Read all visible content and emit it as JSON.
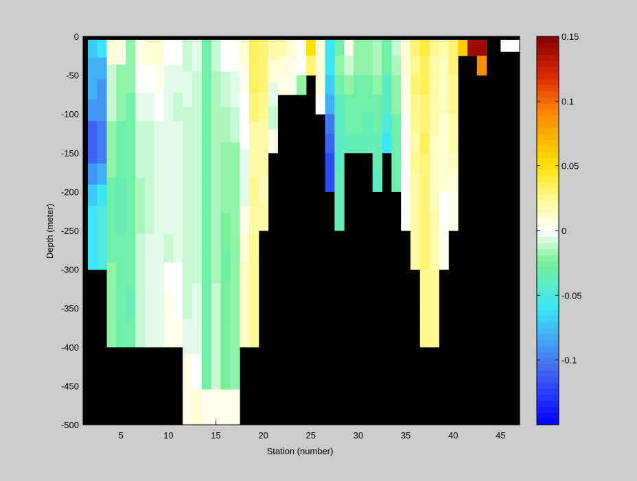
{
  "chart_data": {
    "type": "heatmap",
    "xlabel": "Station (number)",
    "ylabel": "Depth (meter)",
    "xlim": [
      1,
      47
    ],
    "ylim": [
      -500,
      0
    ],
    "x_ticks": [
      5,
      10,
      15,
      20,
      25,
      30,
      35,
      40,
      45
    ],
    "y_ticks": [
      0,
      -50,
      -100,
      -150,
      -200,
      -250,
      -300,
      -350,
      -400,
      -450,
      -500
    ],
    "colorbar": {
      "range": [
        -0.15,
        0.15
      ],
      "ticks": [
        0.15,
        0.1,
        0.05,
        0,
        -0.05,
        -0.1
      ],
      "tick_labels": [
        "0.15",
        "0.1",
        "0.05",
        "0",
        "-0.05",
        "-0.1"
      ],
      "colormap": "jet-with-white-center"
    },
    "land_color": "#000000",
    "columns": [
      {
        "station": 2,
        "bottom": -300,
        "values": [
          -0.07,
          -0.08,
          -0.08,
          -0.09,
          -0.11,
          -0.11,
          -0.09,
          -0.07,
          -0.06,
          -0.06,
          -0.06
        ]
      },
      {
        "station": 3,
        "bottom": -300,
        "values": [
          -0.06,
          -0.08,
          -0.09,
          -0.09,
          -0.1,
          -0.1,
          -0.08,
          -0.06,
          -0.05,
          -0.05,
          -0.05
        ]
      },
      {
        "station": 4,
        "bottom": -400,
        "values": [
          0.01,
          -0.01,
          -0.01,
          -0.02,
          -0.02,
          -0.03,
          -0.03,
          -0.03,
          -0.02,
          -0.02,
          -0.02
        ]
      },
      {
        "station": 5,
        "bottom": -400,
        "values": [
          0.005,
          -0.02,
          -0.02,
          -0.03,
          -0.03,
          -0.035,
          -0.035,
          -0.03,
          -0.03,
          -0.03,
          -0.03
        ]
      },
      {
        "station": 6,
        "bottom": -400,
        "values": [
          -0.02,
          -0.02,
          -0.03,
          -0.03,
          -0.03,
          -0.03,
          -0.03,
          -0.03,
          -0.03,
          -0.035,
          -0.03
        ]
      },
      {
        "station": 7,
        "bottom": -400,
        "values": [
          0.005,
          0.0,
          -0.005,
          -0.01,
          -0.01,
          -0.015,
          -0.015,
          -0.01,
          -0.01,
          -0.01,
          -0.01
        ]
      },
      {
        "station": 8,
        "bottom": -400,
        "values": [
          0.01,
          0.0,
          -0.005,
          -0.01,
          -0.01,
          -0.01,
          -0.01,
          -0.005,
          -0.005,
          -0.005,
          -0.005
        ]
      },
      {
        "station": 9,
        "bottom": -400,
        "values": [
          0.01,
          0.005,
          0.0,
          -0.005,
          -0.005,
          -0.005,
          -0.005,
          -0.005,
          -0.005,
          -0.005,
          -0.005
        ]
      },
      {
        "station": 10,
        "bottom": -400,
        "values": [
          0.0,
          -0.005,
          -0.005,
          -0.005,
          -0.005,
          -0.005,
          -0.005,
          -0.01,
          0.0,
          0.005,
          0.005
        ]
      },
      {
        "station": 11,
        "bottom": -400,
        "values": [
          0.0,
          -0.005,
          -0.01,
          -0.005,
          -0.005,
          -0.005,
          -0.005,
          -0.005,
          0.0,
          0.0,
          0.005
        ]
      },
      {
        "station": 12,
        "bottom": -500,
        "values": [
          -0.01,
          -0.005,
          -0.01,
          -0.01,
          -0.01,
          -0.01,
          -0.01,
          -0.01,
          -0.005,
          0.005,
          0.005
        ]
      },
      {
        "station": 13,
        "bottom": -500,
        "values": [
          -0.005,
          -0.01,
          -0.01,
          -0.01,
          -0.01,
          -0.01,
          -0.01,
          -0.005,
          -0.005,
          0.0,
          0.01
        ]
      },
      {
        "station": 14,
        "bottom": -500,
        "values": [
          -0.03,
          -0.03,
          -0.03,
          -0.03,
          -0.03,
          -0.03,
          -0.03,
          -0.03,
          -0.03,
          -0.03,
          0.005
        ]
      },
      {
        "station": 15,
        "bottom": -500,
        "values": [
          -0.01,
          -0.015,
          -0.015,
          -0.015,
          -0.015,
          -0.015,
          -0.015,
          -0.01,
          -0.01,
          -0.01,
          0.005
        ]
      },
      {
        "station": 16,
        "bottom": -500,
        "values": [
          0.0,
          -0.01,
          -0.015,
          -0.02,
          -0.02,
          -0.025,
          -0.03,
          -0.025,
          -0.025,
          -0.025,
          0.005
        ]
      },
      {
        "station": 17,
        "bottom": -500,
        "values": [
          0.0,
          -0.005,
          -0.01,
          -0.02,
          -0.02,
          -0.02,
          -0.02,
          -0.02,
          -0.02,
          -0.02,
          0.005
        ]
      },
      {
        "station": 18,
        "bottom": -400,
        "values": [
          0.01,
          0.005,
          0.0,
          0.0,
          -0.005,
          -0.005,
          0.005,
          0.01,
          0.015,
          0.015,
          0.015
        ]
      },
      {
        "station": 19,
        "bottom": -400,
        "values": [
          0.035,
          0.035,
          0.03,
          0.02,
          0.02,
          0.025,
          0.02,
          0.025,
          0.025,
          0.025,
          0.025
        ]
      },
      {
        "station": 20,
        "bottom": -250,
        "values": [
          0.03,
          0.03,
          0.025,
          0.02,
          0.02,
          0.015,
          0.02
        ]
      },
      {
        "station": 21,
        "bottom": -150,
        "values": [
          0.02,
          0.01,
          -0.005,
          -0.01,
          0.005
        ]
      },
      {
        "station": 22,
        "bottom": -75,
        "values": [
          0.02,
          0.01,
          0.005
        ]
      },
      {
        "station": 23,
        "bottom": -75,
        "values": [
          0.01,
          0.005,
          0.005
        ]
      },
      {
        "station": 24,
        "bottom": -75,
        "values": [
          0.0,
          0.0,
          -0.02
        ]
      },
      {
        "station": 25,
        "bottom": -50,
        "values": [
          0.05,
          0.03
        ]
      },
      {
        "station": 26,
        "bottom": -100,
        "values": [
          0.01,
          0.01,
          0.01,
          0.0
        ]
      },
      {
        "station": 27,
        "bottom": -200,
        "values": [
          -0.06,
          -0.06,
          -0.07,
          -0.08,
          -0.1,
          -0.11,
          -0.12,
          -0.12
        ]
      },
      {
        "station": 28,
        "bottom": -250,
        "values": [
          -0.03,
          -0.02,
          -0.03,
          -0.04,
          -0.04,
          -0.04,
          -0.04,
          -0.035,
          -0.035,
          -0.035
        ]
      },
      {
        "station": 29,
        "bottom": -150,
        "values": [
          0.005,
          -0.01,
          -0.02,
          -0.03,
          -0.03,
          -0.035
        ]
      },
      {
        "station": 30,
        "bottom": -150,
        "values": [
          -0.02,
          -0.02,
          -0.03,
          -0.03,
          -0.03,
          -0.035
        ]
      },
      {
        "station": 31,
        "bottom": -150,
        "values": [
          -0.02,
          -0.02,
          -0.03,
          -0.03,
          -0.035,
          -0.035
        ]
      },
      {
        "station": 32,
        "bottom": -200,
        "values": [
          -0.015,
          -0.015,
          -0.02,
          -0.03,
          -0.03,
          -0.035,
          -0.035,
          -0.04
        ]
      },
      {
        "station": 33,
        "bottom": -150,
        "values": [
          -0.03,
          -0.03,
          -0.04,
          -0.04,
          -0.05,
          -0.06
        ]
      },
      {
        "station": 34,
        "bottom": -200,
        "values": [
          -0.01,
          -0.015,
          -0.02,
          -0.02,
          -0.03,
          -0.03,
          -0.03,
          -0.03
        ]
      },
      {
        "station": 35,
        "bottom": -250,
        "values": [
          0.01,
          0.01,
          0.005,
          0.005,
          0.0,
          0.0,
          0.0,
          0.0,
          0.0,
          0.0
        ]
      },
      {
        "station": 36,
        "bottom": -300,
        "values": [
          0.03,
          0.025,
          0.03,
          0.025,
          0.025,
          0.02,
          0.025,
          0.02,
          0.02,
          0.02,
          0.02,
          0.02
        ]
      },
      {
        "station": 37,
        "bottom": -400,
        "values": [
          0.04,
          0.035,
          0.035,
          0.03,
          0.03,
          0.035,
          0.03,
          0.03,
          0.03,
          0.03,
          0.03,
          0.03,
          0.025,
          0.025,
          0.025,
          0.025
        ]
      },
      {
        "station": 38,
        "bottom": -400,
        "values": [
          0.025,
          0.02,
          0.02,
          0.02,
          0.02,
          0.015,
          0.015,
          0.015,
          0.015,
          0.02,
          0.02,
          0.02,
          0.025,
          0.025,
          0.025,
          0.025
        ]
      },
      {
        "station": 39,
        "bottom": -300,
        "values": [
          0.02,
          0.015,
          0.015,
          0.015,
          0.01,
          0.01,
          0.01,
          0.01,
          0.0,
          0.0,
          0.005,
          0.005
        ]
      },
      {
        "station": 40,
        "bottom": -250,
        "values": [
          0.03,
          0.03,
          0.025,
          0.025,
          0.02,
          0.02,
          0.015,
          0.01,
          0.005,
          0.005
        ]
      },
      {
        "station": 41,
        "bottom": -25,
        "values": [
          0.06
        ]
      },
      {
        "station": 42,
        "bottom": -25,
        "values": [
          0.14
        ]
      },
      {
        "station": 43,
        "bottom": -50,
        "values": [
          0.14,
          0.09
        ]
      },
      {
        "station": 46,
        "bottom": 0,
        "surface_value": 0.0
      }
    ],
    "extra_cells": [
      {
        "x0": 45,
        "x1": 47,
        "y0": -20,
        "y1": 0,
        "value": 0.0
      }
    ]
  }
}
